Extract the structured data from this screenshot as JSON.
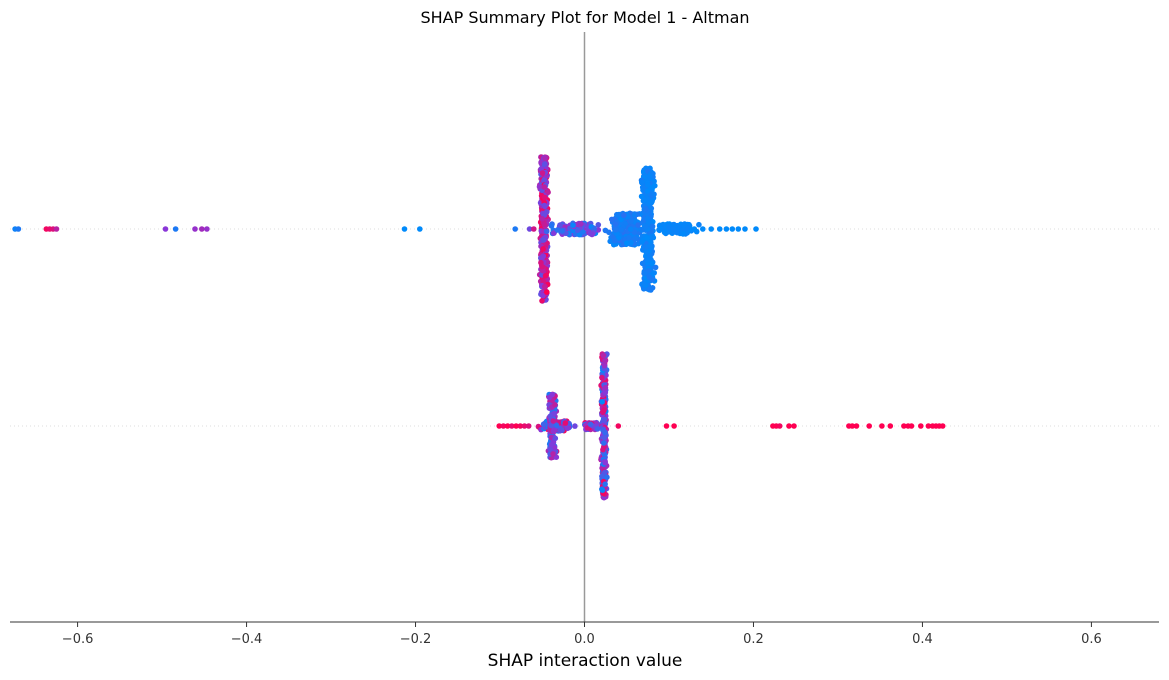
{
  "chart_data": {
    "type": "scatter",
    "title": "SHAP Summary Plot for Model 1 - Altman",
    "xlabel": "SHAP interaction value",
    "xlim": [
      -0.68,
      0.68
    ],
    "xticks": [
      -0.6,
      -0.4,
      -0.2,
      0.0,
      0.2,
      0.4,
      0.6
    ],
    "xtick_labels": [
      "−0.6",
      "−0.4",
      "−0.2",
      "0.0",
      "0.2",
      "0.4",
      "0.6"
    ],
    "zero_line": true,
    "color_map": {
      "low": "#008afb",
      "mid": "#8a36d8",
      "high": "#ff0052"
    },
    "rows": [
      {
        "row": 1,
        "outliers": [
          {
            "x": -0.674,
            "c": 0.05
          },
          {
            "x": -0.67,
            "c": 0.1
          },
          {
            "x": -0.637,
            "c": 0.95
          },
          {
            "x": -0.633,
            "c": 0.9
          },
          {
            "x": -0.629,
            "c": 0.85
          },
          {
            "x": -0.625,
            "c": 0.7
          },
          {
            "x": -0.496,
            "c": 0.5
          },
          {
            "x": -0.484,
            "c": 0.1
          },
          {
            "x": -0.461,
            "c": 0.55
          },
          {
            "x": -0.453,
            "c": 0.6
          },
          {
            "x": -0.447,
            "c": 0.55
          },
          {
            "x": -0.213,
            "c": 0.0
          },
          {
            "x": -0.195,
            "c": 0.0
          },
          {
            "x": -0.082,
            "c": 0.1
          },
          {
            "x": -0.065,
            "c": 0.4
          },
          {
            "x": -0.06,
            "c": 0.8
          },
          {
            "x": 0.13,
            "c": 0.0
          },
          {
            "x": 0.14,
            "c": 0.0
          },
          {
            "x": 0.15,
            "c": 0.0
          },
          {
            "x": 0.16,
            "c": 0.0
          },
          {
            "x": 0.168,
            "c": 0.0
          },
          {
            "x": 0.175,
            "c": 0.0
          },
          {
            "x": 0.182,
            "c": 0.0
          },
          {
            "x": 0.19,
            "c": 0.0
          },
          {
            "x": 0.203,
            "c": 0.0
          }
        ],
        "clusters": [
          {
            "x": -0.048,
            "spread": 0.006,
            "height": 1.0,
            "count": 420,
            "c_min": 0.3,
            "c_max": 1.0
          },
          {
            "x": -0.01,
            "spread": 0.04,
            "height": 0.08,
            "count": 140,
            "c_min": 0.0,
            "c_max": 0.6
          },
          {
            "x": 0.05,
            "spread": 0.025,
            "height": 0.22,
            "count": 220,
            "c_min": 0.0,
            "c_max": 0.15
          },
          {
            "x": 0.075,
            "spread": 0.01,
            "height": 0.85,
            "count": 360,
            "c_min": 0.0,
            "c_max": 0.1
          },
          {
            "x": 0.11,
            "spread": 0.03,
            "height": 0.07,
            "count": 110,
            "c_min": 0.0,
            "c_max": 0.05
          }
        ]
      },
      {
        "row": 2,
        "outliers": [
          {
            "x": -0.101,
            "c": 1.0
          },
          {
            "x": -0.096,
            "c": 0.95
          },
          {
            "x": -0.091,
            "c": 1.0
          },
          {
            "x": -0.086,
            "c": 0.9
          },
          {
            "x": -0.081,
            "c": 1.0
          },
          {
            "x": -0.076,
            "c": 0.95
          },
          {
            "x": -0.071,
            "c": 0.9
          },
          {
            "x": -0.066,
            "c": 0.85
          },
          {
            "x": 0.04,
            "c": 0.95
          },
          {
            "x": 0.097,
            "c": 1.0
          },
          {
            "x": 0.106,
            "c": 1.0
          },
          {
            "x": 0.223,
            "c": 1.0
          },
          {
            "x": 0.227,
            "c": 1.0
          },
          {
            "x": 0.231,
            "c": 0.95
          },
          {
            "x": 0.242,
            "c": 1.0
          },
          {
            "x": 0.248,
            "c": 1.0
          },
          {
            "x": 0.313,
            "c": 1.0
          },
          {
            "x": 0.317,
            "c": 1.0
          },
          {
            "x": 0.322,
            "c": 1.0
          },
          {
            "x": 0.337,
            "c": 1.0
          },
          {
            "x": 0.352,
            "c": 1.0
          },
          {
            "x": 0.362,
            "c": 1.0
          },
          {
            "x": 0.378,
            "c": 1.0
          },
          {
            "x": 0.383,
            "c": 1.0
          },
          {
            "x": 0.387,
            "c": 1.0
          },
          {
            "x": 0.398,
            "c": 1.0
          },
          {
            "x": 0.407,
            "c": 1.0
          },
          {
            "x": 0.412,
            "c": 1.0
          },
          {
            "x": 0.416,
            "c": 1.0
          },
          {
            "x": 0.42,
            "c": 1.0
          },
          {
            "x": 0.424,
            "c": 1.0
          }
        ],
        "clusters": [
          {
            "x": -0.035,
            "spread": 0.025,
            "height": 0.07,
            "count": 160,
            "c_min": 0.0,
            "c_max": 1.0
          },
          {
            "x": -0.038,
            "spread": 0.006,
            "height": 0.45,
            "count": 140,
            "c_min": 0.1,
            "c_max": 0.8
          },
          {
            "x": 0.008,
            "spread": 0.015,
            "height": 0.05,
            "count": 70,
            "c_min": 0.2,
            "c_max": 1.0
          },
          {
            "x": 0.023,
            "spread": 0.004,
            "height": 1.0,
            "count": 420,
            "c_min": 0.0,
            "c_max": 1.0
          }
        ]
      }
    ]
  }
}
